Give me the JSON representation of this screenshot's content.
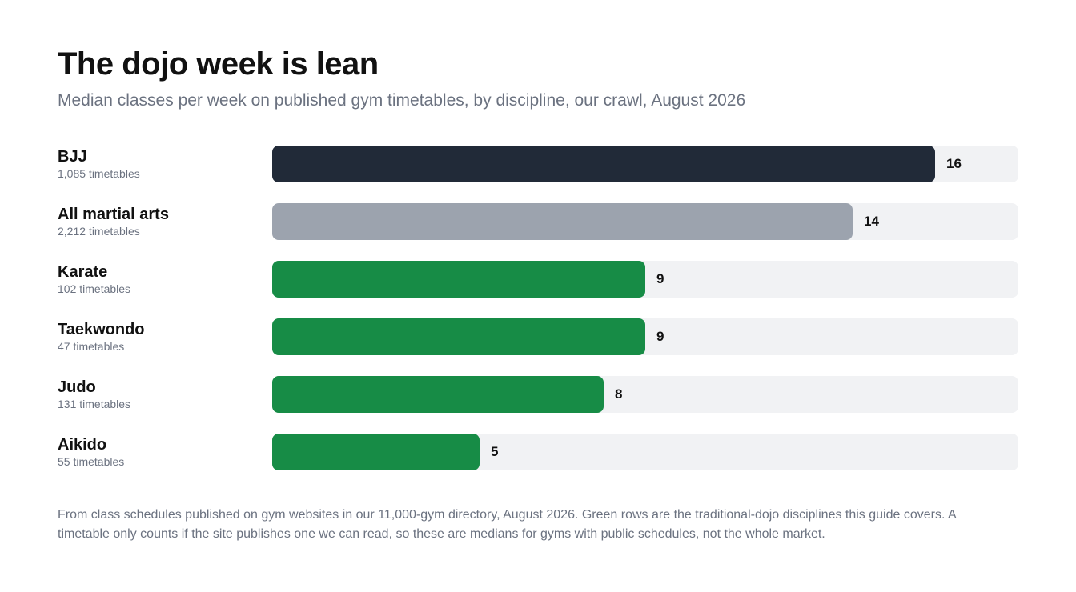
{
  "header": {
    "title": "The dojo week is lean",
    "subtitle": "Median classes per week on published gym timetables, by discipline, our crawl, August 2026"
  },
  "chart_data": {
    "type": "bar",
    "orientation": "horizontal",
    "categories": [
      "BJJ",
      "All martial arts",
      "Karate",
      "Taekwondo",
      "Judo",
      "Aikido"
    ],
    "sublabels": [
      "1,085 timetables",
      "2,212 timetables",
      "102 timetables",
      "47 timetables",
      "131 timetables",
      "55 timetables"
    ],
    "values": [
      16,
      14,
      9,
      9,
      8,
      5
    ],
    "value_labels": [
      "16",
      "14",
      "9",
      "9",
      "8",
      "5"
    ],
    "xlim": [
      0,
      18
    ],
    "grid": false,
    "colors": [
      "#212a38",
      "#9ca3ae",
      "#178c46",
      "#178c46",
      "#178c46",
      "#178c46"
    ],
    "track_color": "#f1f2f4"
  },
  "footnote": {
    "text": "From class schedules published on gym websites in our 11,000-gym directory, August 2026. Green rows are the traditional-dojo disciplines this guide covers. A timetable only counts if the site publishes one we can read, so these are medians for gyms with public schedules, not the whole market."
  }
}
